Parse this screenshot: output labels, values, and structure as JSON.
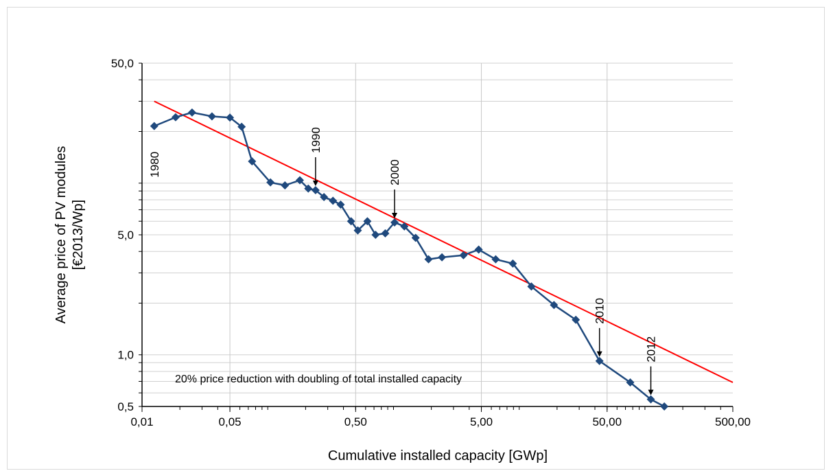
{
  "chart_data": {
    "type": "line",
    "xscale": "log",
    "yscale": "log",
    "xlim": [
      0.01,
      500
    ],
    "ylim": [
      0.5,
      50
    ],
    "x_ticks": [
      {
        "value": 0.01,
        "label": "0,01"
      },
      {
        "value": 0.05,
        "label": "0,05"
      },
      {
        "value": 0.5,
        "label": "0,50"
      },
      {
        "value": 5,
        "label": "5,00"
      },
      {
        "value": 50,
        "label": "50,00"
      },
      {
        "value": 500,
        "label": "500,00"
      }
    ],
    "y_ticks": [
      {
        "value": 0.5,
        "label": "0,5"
      },
      {
        "value": 1,
        "label": "1,0"
      },
      {
        "value": 5,
        "label": "5,0"
      },
      {
        "value": 50,
        "label": "50,0"
      }
    ],
    "xlabel": "Cumulative installed capacity  [GWp]",
    "ylabel_line1": "Average price of PV modules",
    "ylabel_line2": "[€2013/Wp]",
    "grid": true,
    "line_color": "#1f497d",
    "trend_color": "#ff0000",
    "series": [
      {
        "x": [
          0.0125,
          0.0185,
          0.025,
          0.036,
          0.05,
          0.062,
          0.075,
          0.105,
          0.137,
          0.18,
          0.21,
          0.24,
          0.28,
          0.33,
          0.38,
          0.46,
          0.52,
          0.62,
          0.72,
          0.86,
          1.02,
          1.22,
          1.5,
          1.9,
          2.43,
          3.6,
          4.76,
          6.5,
          8.9,
          12.5,
          18.9,
          28.2,
          43.5,
          76.4,
          111.4,
          142.6
        ],
        "y": [
          21.5,
          24.2,
          25.8,
          24.5,
          24.1,
          21.3,
          13.4,
          10.1,
          9.7,
          10.4,
          9.3,
          9.1,
          8.3,
          7.9,
          7.5,
          6.0,
          5.3,
          6.0,
          5.0,
          5.1,
          5.9,
          5.6,
          4.8,
          3.6,
          3.7,
          3.8,
          4.1,
          3.6,
          3.4,
          2.5,
          1.95,
          1.6,
          0.92,
          0.69,
          0.55,
          0.5
        ]
      }
    ],
    "trend_line": {
      "x": [
        0.0125,
        500
      ],
      "y": [
        30.0,
        0.69
      ]
    },
    "annotations": [
      {
        "text": "1980",
        "x": 0.0125,
        "y": 21.5,
        "arrow": false
      },
      {
        "text": "1990",
        "x": 0.24,
        "y": 9.1,
        "arrow": true
      },
      {
        "text": "2000",
        "x": 1.02,
        "y": 5.9,
        "arrow": true
      },
      {
        "text": "2010",
        "x": 43.5,
        "y": 0.92,
        "arrow": true
      },
      {
        "text": "2012",
        "x": 111.4,
        "y": 0.55,
        "arrow": true
      }
    ],
    "note": "20% price reduction with doubling of total installed capacity"
  }
}
